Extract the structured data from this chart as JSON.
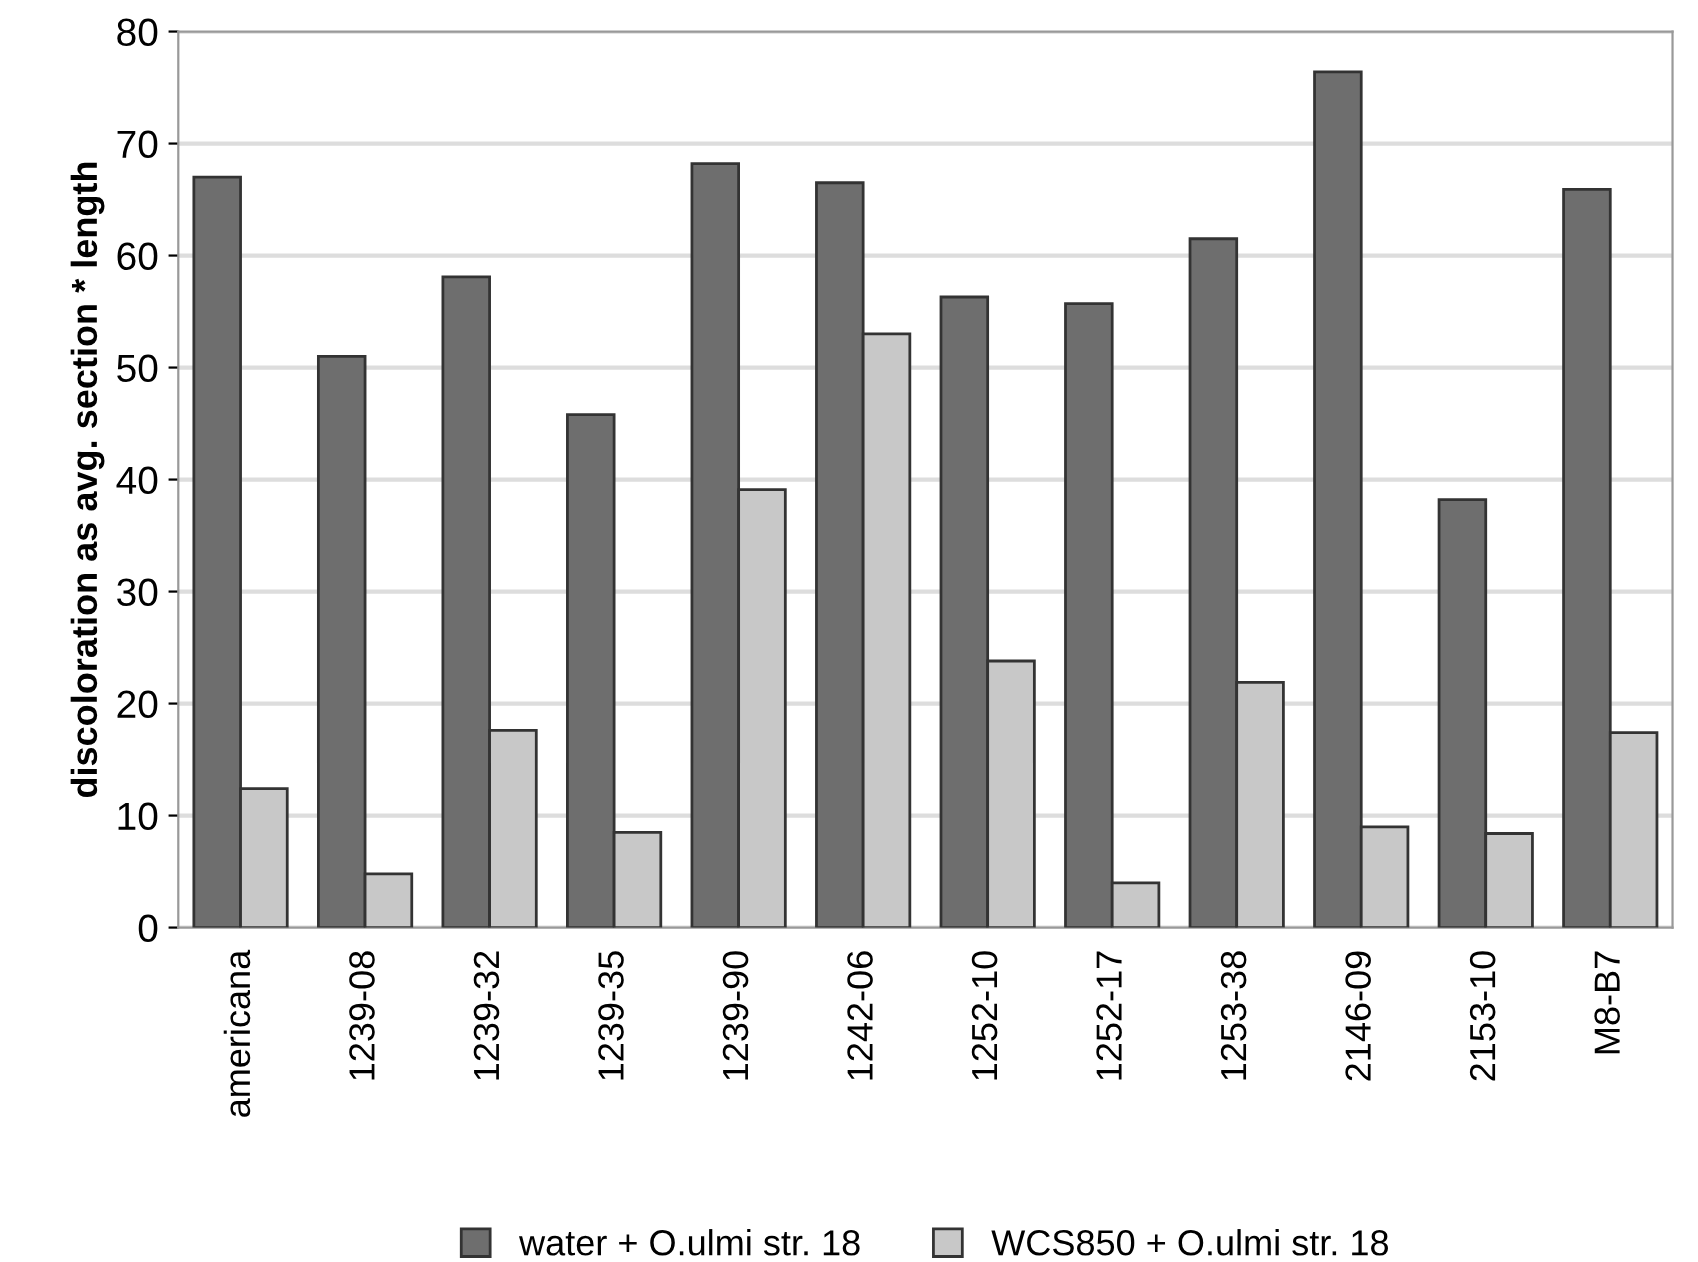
{
  "chart_data": {
    "type": "bar",
    "ylabel": "discoloration as avg. section * length",
    "categories": [
      "americana",
      "1239-08",
      "1239-32",
      "1239-35",
      "1239-90",
      "1242-06",
      "1252-10",
      "1252-17",
      "1253-38",
      "2146-09",
      "2153-10",
      "M8-B7"
    ],
    "series": [
      {
        "name": "water + O.ulmi str. 18",
        "color": "#6e6e6e",
        "values": [
          67.0,
          51.0,
          58.1,
          45.8,
          68.2,
          66.5,
          56.3,
          55.7,
          61.5,
          76.4,
          38.2,
          65.9
        ]
      },
      {
        "name": "WCS850 + O.ulmi str. 18",
        "color": "#c8c8c8",
        "values": [
          12.4,
          4.8,
          17.6,
          8.5,
          39.1,
          53.0,
          23.8,
          4.0,
          21.9,
          9.0,
          8.4,
          17.4
        ]
      }
    ],
    "ylim": [
      0,
      80
    ],
    "yticks": [
      0,
      10,
      20,
      30,
      40,
      50,
      60,
      70,
      80
    ],
    "grid": "y",
    "legend": "bottom"
  }
}
